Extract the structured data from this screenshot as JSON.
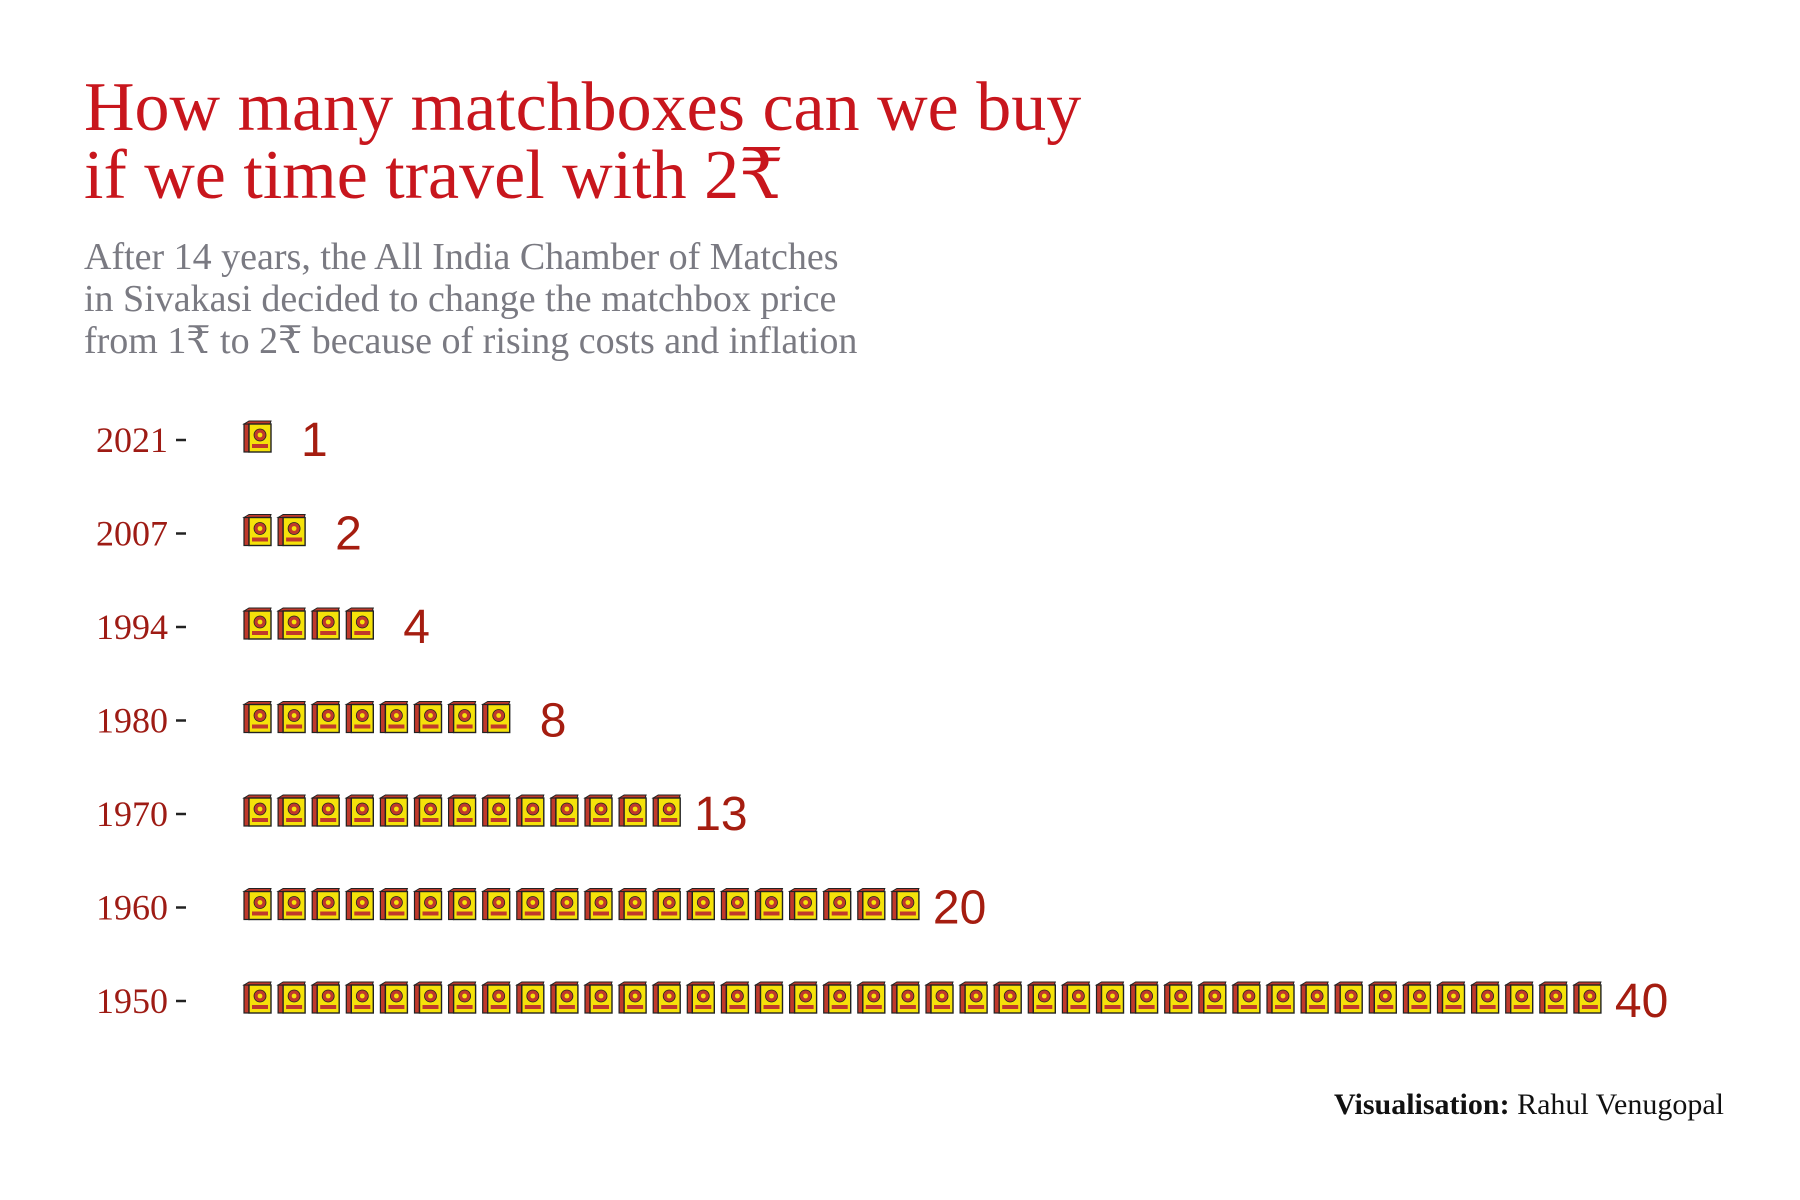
{
  "title_lines": [
    "How many matchboxes can we buy",
    "if we time travel with 2₹"
  ],
  "subtitle_lines": [
    "After 14 years, the All India Chamber of Matches",
    "in Sivakasi decided to change the matchbox price",
    "from 1₹ to 2₹ because of rising costs and inflation"
  ],
  "caption": {
    "label": "Visualisation:",
    "author": "Rahul Venugopal"
  },
  "colors": {
    "title": "#c8161d",
    "subtitle": "#7a7a82",
    "axis_label": "#9e1b14",
    "value_label": "#a51d10",
    "matchbox_face": "#f5e20a",
    "matchbox_side": "#c0392b",
    "matchbox_outline": "#222222"
  },
  "icon": "matchbox-icon",
  "chart_data": {
    "type": "bar",
    "orientation": "horizontal",
    "mark": "pictogram",
    "categories": [
      "2021",
      "2007",
      "1994",
      "1980",
      "1970",
      "1960",
      "1950"
    ],
    "values": [
      1,
      2,
      4,
      8,
      13,
      20,
      40
    ],
    "value_labels": [
      "1",
      "2",
      "4",
      "8",
      "13",
      "20",
      "40"
    ]
  }
}
